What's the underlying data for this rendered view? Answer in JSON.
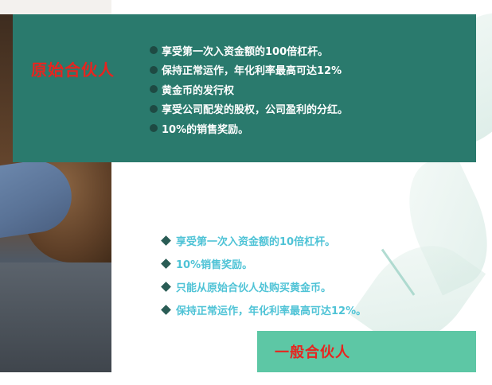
{
  "founding_partner": {
    "title": "原始合伙人",
    "benefits": [
      "享受第一次入资金额的100倍杠杆。",
      "保持正常运作，年化利率最高可达12%",
      "黄金币的发行权",
      "享受公司配发的股权，公司盈利的分红。",
      "10%的销售奖励。"
    ]
  },
  "general_partner": {
    "title": "一般合伙人",
    "benefits": [
      "享受第一次入资金额的10倍杠杆。",
      "10%销售奖励。",
      "只能从原始合伙人处购买黄金币。",
      "保持正常运作，年化利率最高可达12%。"
    ]
  },
  "colors": {
    "top_panel": "#2a7a6d",
    "bottom_panel": "#5dc7a5",
    "title_red": "#e8241f",
    "bottom_list_text": "#4fc3d6"
  }
}
